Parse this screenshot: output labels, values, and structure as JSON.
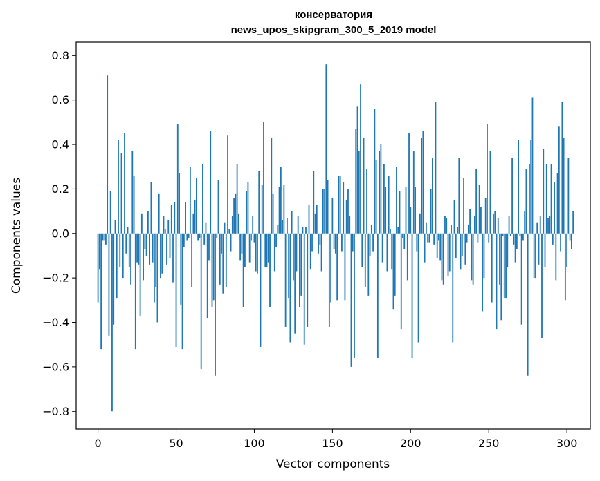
{
  "chart_data": {
    "type": "bar",
    "title_line1": "консерватория",
    "title_line2": "news_upos_skipgram_300_5_2019 model",
    "xlabel": "Vector components",
    "ylabel": "Components values",
    "xlim": [
      -14,
      315
    ],
    "ylim": [
      -0.88,
      0.86
    ],
    "xticks": [
      0,
      50,
      100,
      150,
      200,
      250,
      300
    ],
    "xtick_labels": [
      "0",
      "50",
      "100",
      "150",
      "200",
      "250",
      "300"
    ],
    "yticks": [
      -0.8,
      -0.6,
      -0.4,
      -0.2,
      0.0,
      0.2,
      0.4,
      0.6,
      0.8
    ],
    "ytick_labels": [
      "−0.8",
      "−0.6",
      "−0.4",
      "−0.2",
      "0.0",
      "0.2",
      "0.4",
      "0.6",
      "0.8"
    ],
    "bar_color": "#1f77b4",
    "values": [
      -0.31,
      -0.16,
      -0.52,
      -0.03,
      -0.03,
      -0.05,
      0.71,
      -0.46,
      0.19,
      -0.8,
      -0.41,
      0.06,
      -0.29,
      0.42,
      -0.15,
      0.36,
      -0.2,
      0.45,
      -0.09,
      0.03,
      -0.15,
      -0.23,
      0.37,
      0.26,
      -0.52,
      -0.13,
      -0.14,
      -0.37,
      0.09,
      -0.21,
      -0.07,
      -0.1,
      0.1,
      -0.14,
      0.23,
      -0.13,
      -0.31,
      -0.24,
      -0.4,
      0.18,
      -0.2,
      -0.18,
      0.08,
      0.02,
      -0.14,
      0.06,
      -0.11,
      0.13,
      -0.22,
      0.14,
      -0.51,
      0.49,
      0.27,
      -0.32,
      -0.52,
      -0.06,
      0.14,
      -0.03,
      -0.02,
      0.3,
      -0.24,
      0.09,
      0.15,
      0.25,
      -0.03,
      -0.02,
      -0.61,
      0.31,
      -0.05,
      0.05,
      -0.38,
      -0.12,
      0.46,
      -0.33,
      -0.3,
      -0.64,
      -0.02,
      0.24,
      -0.23,
      -0.09,
      -0.27,
      0.05,
      -0.24,
      0.44,
      0.02,
      -0.08,
      0.08,
      0.16,
      0.18,
      0.31,
      0.09,
      -0.12,
      -0.09,
      -0.33,
      -0.15,
      0.19,
      0.23,
      -0.13,
      -0.03,
      0.08,
      -0.04,
      -0.17,
      -0.18,
      0.28,
      -0.51,
      0.22,
      0.5,
      -0.15,
      -0.15,
      -0.13,
      -0.33,
      0.43,
      0.18,
      -0.17,
      -0.06,
      0.04,
      0.21,
      0.3,
      0.06,
      0.22,
      -0.42,
      0.07,
      -0.29,
      -0.49,
      0.1,
      -0.21,
      -0.45,
      -0.17,
      0.08,
      -0.33,
      -0.28,
      0.03,
      -0.5,
      0.03,
      -0.42,
      0.13,
      -0.16,
      -0.08,
      0.28,
      0.09,
      0.13,
      -0.09,
      -0.05,
      -0.17,
      0.2,
      0.2,
      0.76,
      0.24,
      -0.42,
      -0.31,
      0.16,
      -0.07,
      -0.09,
      -0.3,
      0.26,
      0.26,
      -0.08,
      0.23,
      -0.3,
      0.15,
      0.2,
      0.08,
      -0.6,
      -0.08,
      -0.56,
      0.47,
      0.57,
      0.37,
      0.67,
      -0.15,
      0.43,
      -0.24,
      0.29,
      -0.28,
      -0.1,
      0.04,
      -0.08,
      0.56,
      0.33,
      -0.56,
      0.37,
      0.4,
      -0.13,
      0.31,
      0.21,
      -0.17,
      0.26,
      0.02,
      -0.16,
      -0.34,
      -0.28,
      0.3,
      0.03,
      0.19,
      -0.43,
      -0.02,
      -0.07,
      0.21,
      -0.21,
      0.45,
      0.12,
      -0.56,
      0.37,
      0.21,
      -0.08,
      -0.49,
      0.09,
      0.43,
      0.46,
      -0.13,
      0.05,
      -0.04,
      -0.04,
      0.2,
      0.34,
      -0.05,
      0.59,
      -0.11,
      -0.03,
      -0.12,
      -0.21,
      -0.23,
      0.08,
      0.07,
      -0.19,
      -0.17,
      0.04,
      -0.49,
      0.15,
      -0.11,
      0.03,
      0.34,
      -0.16,
      -0.1,
      0.25,
      -0.14,
      -0.04,
      0.04,
      0.11,
      -0.21,
      -0.23,
      0.08,
      0.29,
      -0.04,
      0.22,
      0.12,
      -0.35,
      -0.2,
      0.16,
      0.49,
      -0.04,
      0.37,
      -0.31,
      0.09,
      0.1,
      -0.43,
      0.07,
      -0.23,
      -0.39,
      -0.01,
      -0.29,
      -0.29,
      -0.15,
      0.08,
      -0.01,
      0.34,
      -0.05,
      -0.13,
      -0.07,
      0.42,
      -0.01,
      -0.41,
      -0.03,
      0.1,
      0.29,
      -0.64,
      0.31,
      0.42,
      0.61,
      -0.2,
      -0.2,
      0.05,
      -0.14,
      0.08,
      -0.47,
      0.38,
      -0.15,
      0.31,
      0.07,
      0.08,
      0.31,
      -0.05,
      0.23,
      -0.21,
      0.27,
      0.48,
      -0.08,
      0.59,
      0.43,
      -0.3,
      -0.15,
      0.34,
      -0.03,
      -0.07,
      0.1
    ]
  }
}
